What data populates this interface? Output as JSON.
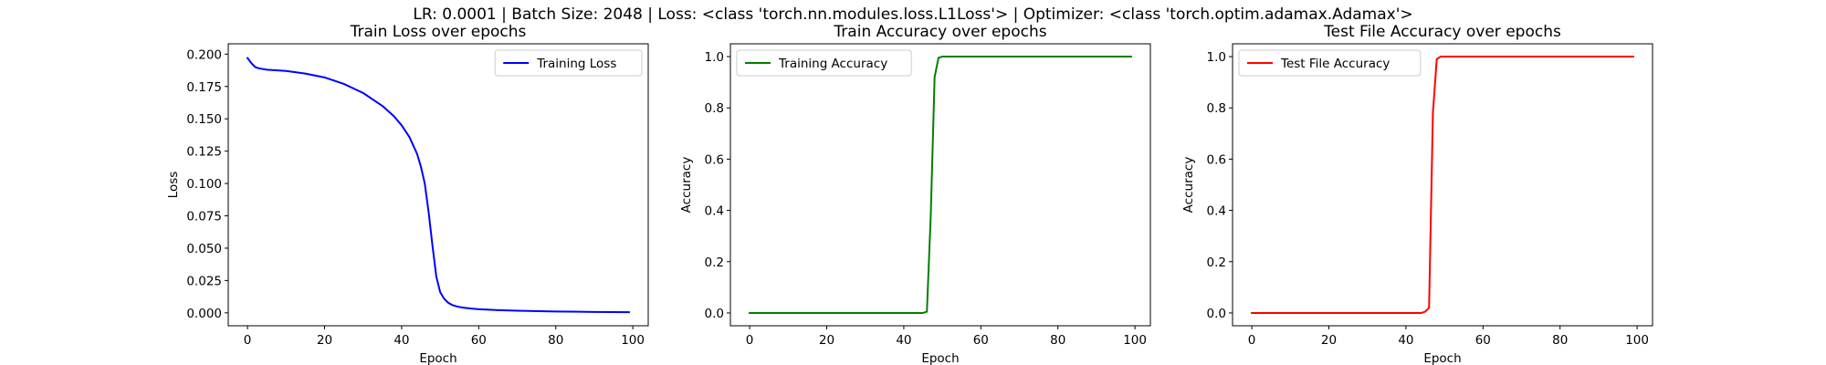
{
  "suptitle": "LR: 0.0001 | Batch Size: 2048 | Loss: <class 'torch.nn.modules.loss.L1Loss'> | Optimizer: <class 'torch.optim.adamax.Adamax'>",
  "chart_data": [
    {
      "type": "line",
      "title": "Train Loss over epochs",
      "xlabel": "Epoch",
      "ylabel": "Loss",
      "xlim": [
        -5,
        104
      ],
      "ylim": [
        -0.01,
        0.208
      ],
      "xticks": [
        0,
        20,
        40,
        60,
        80,
        100
      ],
      "xtick_labels": [
        "0",
        "20",
        "40",
        "60",
        "80",
        "100"
      ],
      "yticks": [
        0,
        0.025,
        0.05,
        0.075,
        0.1,
        0.125,
        0.15,
        0.175,
        0.2
      ],
      "ytick_labels": [
        "0.000",
        "0.025",
        "0.050",
        "0.075",
        "0.100",
        "0.125",
        "0.150",
        "0.175",
        "0.200"
      ],
      "grid": false,
      "legend_position": "upper-right",
      "series": [
        {
          "name": "Training Loss",
          "color": "#0000ff",
          "x": [
            0,
            1,
            2,
            3,
            5,
            10,
            15,
            20,
            25,
            30,
            35,
            38,
            40,
            42,
            44,
            45,
            46,
            47,
            48,
            49,
            50,
            51,
            52,
            53,
            54,
            55,
            56,
            58,
            60,
            62,
            65,
            70,
            80,
            90,
            99
          ],
          "y": [
            0.197,
            0.193,
            0.19,
            0.189,
            0.188,
            0.187,
            0.185,
            0.182,
            0.177,
            0.17,
            0.16,
            0.152,
            0.145,
            0.136,
            0.123,
            0.113,
            0.1,
            0.078,
            0.052,
            0.028,
            0.016,
            0.011,
            0.008,
            0.0062,
            0.0052,
            0.0045,
            0.004,
            0.0033,
            0.0028,
            0.0025,
            0.0021,
            0.0016,
            0.001,
            0.0007,
            0.0005
          ]
        }
      ]
    },
    {
      "type": "line",
      "title": "Train Accuracy over epochs",
      "xlabel": "Epoch",
      "ylabel": "Accuracy",
      "xlim": [
        -5,
        104
      ],
      "ylim": [
        -0.05,
        1.05
      ],
      "xticks": [
        0,
        20,
        40,
        60,
        80,
        100
      ],
      "xtick_labels": [
        "0",
        "20",
        "40",
        "60",
        "80",
        "100"
      ],
      "yticks": [
        0,
        0.2,
        0.4,
        0.6,
        0.8,
        1
      ],
      "ytick_labels": [
        "0.0",
        "0.2",
        "0.4",
        "0.6",
        "0.8",
        "1.0"
      ],
      "grid": false,
      "legend_position": "upper-left",
      "series": [
        {
          "name": "Training Accuracy",
          "color": "#008000",
          "x": [
            0,
            10,
            20,
            30,
            40,
            45,
            46,
            47,
            48,
            49,
            50,
            60,
            70,
            80,
            90,
            99
          ],
          "y": [
            0,
            0,
            0,
            0,
            0,
            0,
            0.005,
            0.38,
            0.92,
            0.995,
            1,
            1,
            1,
            1,
            1,
            1
          ]
        }
      ]
    },
    {
      "type": "line",
      "title": "Test File Accuracy over epochs",
      "xlabel": "Epoch",
      "ylabel": "Accuracy",
      "xlim": [
        -5,
        104
      ],
      "ylim": [
        -0.05,
        1.05
      ],
      "xticks": [
        0,
        20,
        40,
        60,
        80,
        100
      ],
      "xtick_labels": [
        "0",
        "20",
        "40",
        "60",
        "80",
        "100"
      ],
      "yticks": [
        0,
        0.2,
        0.4,
        0.6,
        0.8,
        1
      ],
      "ytick_labels": [
        "0.0",
        "0.2",
        "0.4",
        "0.6",
        "0.8",
        "1.0"
      ],
      "grid": false,
      "legend_position": "upper-left",
      "series": [
        {
          "name": "Test File Accuracy",
          "color": "#ff0000",
          "x": [
            0,
            10,
            20,
            30,
            40,
            44,
            45,
            46,
            47,
            48,
            49,
            50,
            60,
            70,
            80,
            90,
            99
          ],
          "y": [
            0,
            0,
            0,
            0,
            0,
            0,
            0.005,
            0.02,
            0.78,
            0.99,
            1,
            1,
            1,
            1,
            1,
            1,
            1
          ]
        }
      ]
    }
  ]
}
